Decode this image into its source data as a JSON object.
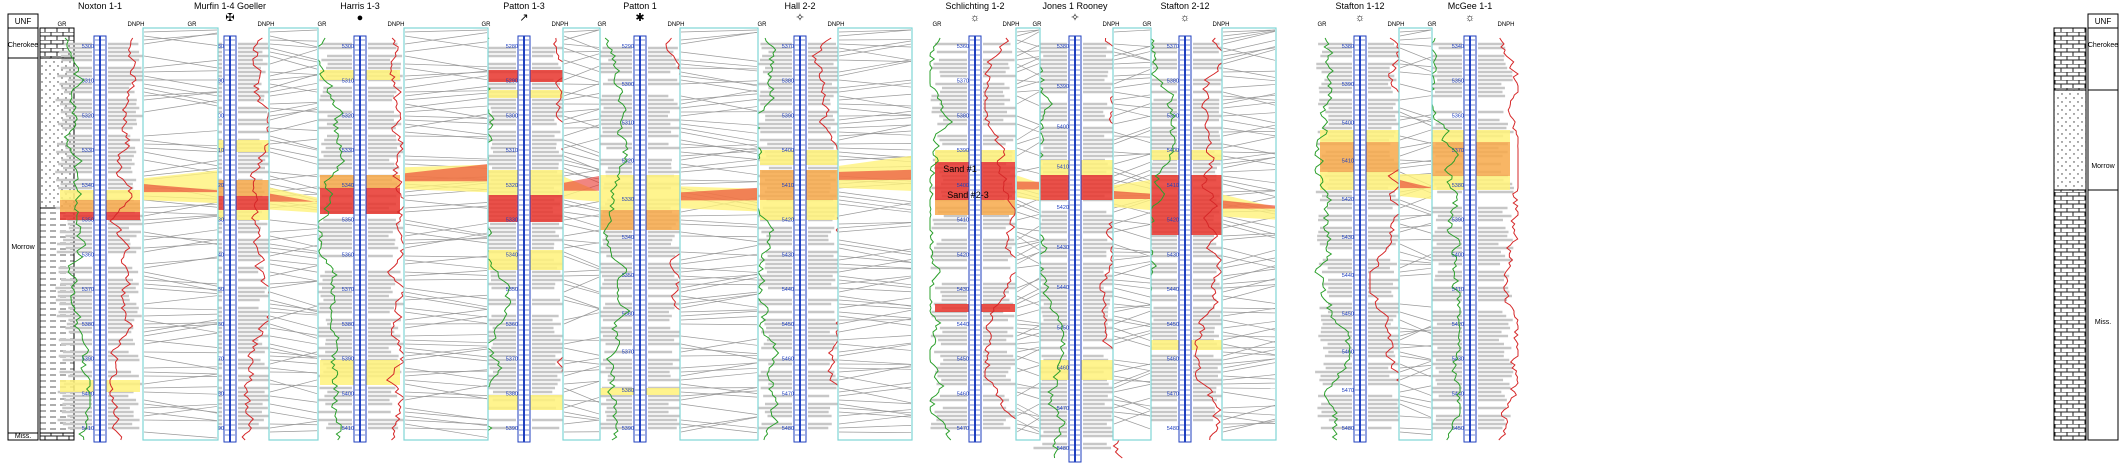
{
  "left_column": {
    "header": "UNF",
    "units": [
      "Cherokee",
      "Morrow",
      "Miss."
    ]
  },
  "right_column": {
    "header": "UNF",
    "units": [
      "Cherokee",
      "Morrow",
      "Miss."
    ]
  },
  "log_labels": {
    "gr": "GR",
    "dnph": "DNPH"
  },
  "wells": [
    {
      "name": "Noxton 1-1",
      "symbol": "",
      "depths": [
        "5300",
        "5310",
        "5320",
        "5330",
        "5340",
        "5350",
        "5360",
        "5370",
        "5380",
        "5390",
        "5400",
        "5410"
      ]
    },
    {
      "name": "Murfin 1-4 Goeller",
      "symbol": "✠",
      "depths": [
        "5280",
        "5290",
        "5300",
        "5310",
        "5320",
        "5330",
        "5340",
        "5350",
        "5360",
        "5370",
        "5380",
        "5390"
      ]
    },
    {
      "name": "Harris 1-3",
      "symbol": "●",
      "depths": [
        "5300",
        "5310",
        "5320",
        "5330",
        "5340",
        "5350",
        "5360",
        "5370",
        "5380",
        "5390",
        "5400",
        "5410"
      ]
    },
    {
      "name": "Patton 1-3",
      "symbol": "↗",
      "depths": [
        "5280",
        "5290",
        "5300",
        "5310",
        "5320",
        "5330",
        "5340",
        "5350",
        "5360",
        "5370",
        "5380",
        "5390"
      ]
    },
    {
      "name": "Patton 1",
      "symbol": "✱",
      "depths": [
        "5290",
        "5300",
        "5310",
        "5320",
        "5330",
        "5340",
        "5350",
        "5360",
        "5370",
        "5380",
        "5390"
      ]
    },
    {
      "name": "Hall 2-2",
      "symbol": "✧",
      "depths": [
        "5370",
        "5380",
        "5390",
        "5400",
        "5410",
        "5420",
        "5430",
        "5440",
        "5450",
        "5460",
        "5470",
        "5480"
      ]
    },
    {
      "name": "Schlichting 1-2",
      "symbol": "☼",
      "depths": [
        "5360",
        "5370",
        "5380",
        "5390",
        "5400",
        "5410",
        "5420",
        "5430",
        "5440",
        "5450",
        "5460",
        "5470"
      ]
    },
    {
      "name": "Jones 1 Rooney",
      "symbol": "✧",
      "depths": [
        "5380",
        "5390",
        "5400",
        "5410",
        "5420",
        "5430",
        "5440",
        "5450",
        "5460",
        "5470",
        "5480"
      ]
    },
    {
      "name": "Stafton 2-12",
      "symbol": "☼",
      "depths": [
        "5370",
        "5380",
        "5390",
        "5400",
        "5410",
        "5420",
        "5430",
        "5440",
        "5450",
        "5460",
        "5470",
        "5480"
      ]
    },
    {
      "name": "Stafton 1-12",
      "symbol": "☼",
      "depths": [
        "5380",
        "5390",
        "5400",
        "5410",
        "5420",
        "5430",
        "5440",
        "5450",
        "5460",
        "5470",
        "5480"
      ]
    },
    {
      "name": "McGee 1-1",
      "symbol": "☼",
      "depths": [
        "5340",
        "5350",
        "5360",
        "5370",
        "5380",
        "5390",
        "5400",
        "5410",
        "5420",
        "5430",
        "5440",
        "5450"
      ]
    }
  ],
  "annotations": [
    "Sand #1",
    "Sand #2-3"
  ],
  "colors": {
    "gr_curve": "#2ca02c",
    "dnph_curve": "#d62728",
    "depth_track": "#1f3fbf",
    "panel_border": "#7fd6d6",
    "shale_fill": "#c7c7c7",
    "sand_fill": "#fff27a",
    "pay_sand_fill": "#f7a94a",
    "best_pay_fill": "#e8342b"
  }
}
